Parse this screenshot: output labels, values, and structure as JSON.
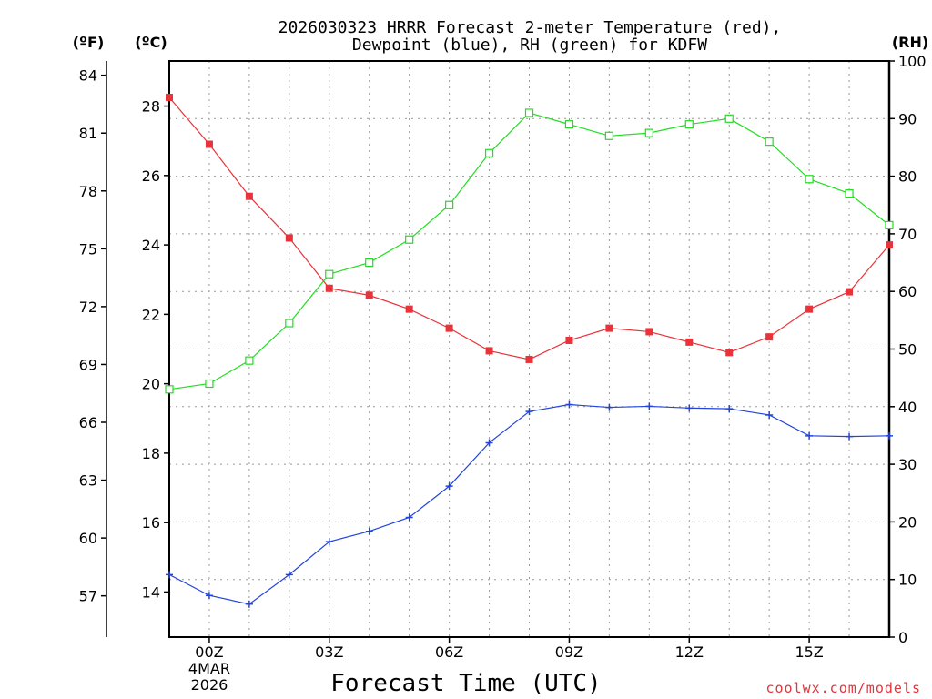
{
  "chart_data": {
    "type": "line",
    "title": "2026030323 HRRR Forecast 2-meter Temperature (red),",
    "subtitle": "Dewpoint (blue), RH (green) for KDFW",
    "xlabel": "Forecast Time (UTC)",
    "x_ticks": [
      "00Z",
      "03Z",
      "06Z",
      "09Z",
      "12Z",
      "15Z"
    ],
    "x_date": [
      "4MAR",
      "2026"
    ],
    "x_hours": [
      -1,
      0,
      1,
      2,
      3,
      4,
      5,
      6,
      7,
      8,
      9,
      10,
      11,
      12,
      13,
      14,
      15,
      16,
      17
    ],
    "x_range": [
      -1,
      17
    ],
    "axes": {
      "left_f": {
        "label": "(ºF)",
        "ticks": [
          57,
          60,
          63,
          66,
          69,
          72,
          75,
          78,
          81,
          84
        ]
      },
      "left_c": {
        "label": "(ºC)",
        "ticks": [
          14,
          16,
          18,
          20,
          22,
          24,
          26,
          28
        ],
        "range": [
          12.7,
          29.3
        ]
      },
      "right_rh": {
        "label": "(RH)",
        "ticks": [
          0,
          10,
          20,
          30,
          40,
          50,
          60,
          70,
          80,
          90,
          100
        ],
        "range": [
          0,
          100
        ]
      }
    },
    "series": [
      {
        "name": "Temperature",
        "unit": "C",
        "color": "#e8333a",
        "marker": "filled-square",
        "values": [
          28.25,
          26.9,
          25.4,
          24.2,
          22.75,
          22.55,
          22.15,
          21.6,
          20.95,
          20.7,
          21.25,
          21.6,
          21.5,
          21.2,
          20.9,
          21.35,
          22.15,
          22.65,
          24.0
        ]
      },
      {
        "name": "Dewpoint",
        "unit": "C",
        "color": "#2244dd",
        "marker": "plus",
        "values": [
          14.5,
          13.9,
          13.65,
          14.5,
          15.45,
          15.75,
          16.15,
          17.05,
          18.3,
          19.2,
          19.4,
          19.32,
          19.35,
          19.3,
          19.28,
          19.1,
          18.5,
          18.48,
          18.5
        ]
      },
      {
        "name": "RH",
        "unit": "%",
        "color": "#22dd22",
        "marker": "open-square",
        "values": [
          43,
          44,
          48,
          54.5,
          63,
          65,
          69,
          75,
          84,
          91,
          89,
          87,
          87.5,
          89,
          90,
          86,
          79.5,
          77,
          71.5
        ]
      }
    ],
    "credit": "coolwx.com/models"
  }
}
